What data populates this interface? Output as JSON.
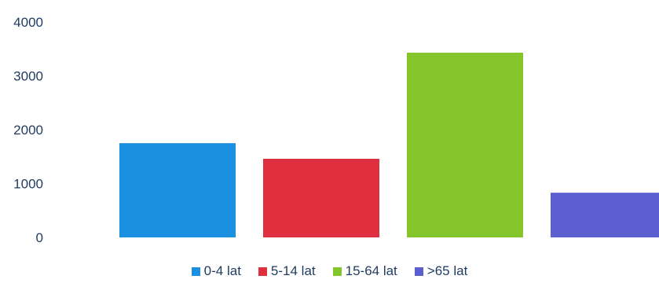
{
  "chart_data": {
    "type": "bar",
    "categories": [
      "0-4 lat",
      "5-14 lat",
      "15-64 lat",
      ">65 lat"
    ],
    "values": [
      1750,
      1460,
      3430,
      830
    ],
    "colors": [
      "#1b8fe0",
      "#e0303f",
      "#84c52c",
      "#5b5fcf"
    ],
    "y_ticks": [
      "0",
      "1000",
      "2000",
      "3000",
      "4000"
    ],
    "ylim": [
      0,
      4000
    ],
    "grid": false,
    "legend": {
      "position": "bottom",
      "entries": [
        "0-4 lat",
        "5-14 lat",
        "15-64 lat",
        ">65 lat"
      ]
    }
  }
}
